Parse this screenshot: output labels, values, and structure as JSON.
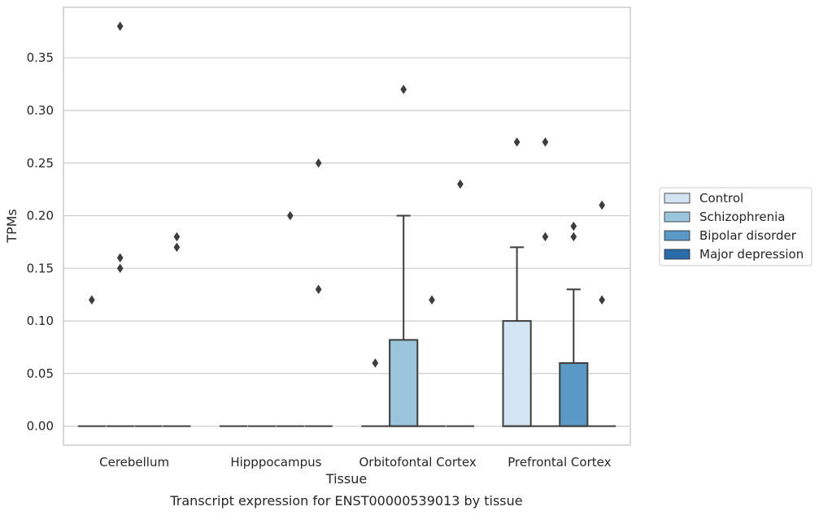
{
  "caption": "Transcript expression for ENST00000539013 by tissue",
  "chart_data": {
    "type": "box",
    "xlabel": "Tissue",
    "ylabel": "TPMs",
    "ylim": [
      -0.018,
      0.398
    ],
    "yticks": [
      "0.00",
      "0.05",
      "0.10",
      "0.15",
      "0.20",
      "0.25",
      "0.30",
      "0.35"
    ],
    "grid": "horizontal",
    "legend_position": "right",
    "categories": [
      "Cerebellum",
      "Hipppocampus",
      "Orbitofontal Cortex",
      "Prefrontal Cortex"
    ],
    "series": [
      {
        "name": "Control",
        "color": "#d3e4f3",
        "boxes": [
          {
            "q1": 0,
            "median": 0,
            "q3": 0,
            "whisker_low": 0,
            "whisker_high": 0,
            "outliers": [
              0.12
            ]
          },
          {
            "q1": 0,
            "median": 0,
            "q3": 0,
            "whisker_low": 0,
            "whisker_high": 0,
            "outliers": []
          },
          {
            "q1": 0,
            "median": 0,
            "q3": 0,
            "whisker_low": 0,
            "whisker_high": 0,
            "outliers": [
              0.06
            ]
          },
          {
            "q1": 0,
            "median": 0,
            "q3": 0.1,
            "whisker_low": 0,
            "whisker_high": 0.17,
            "outliers": [
              0.27
            ]
          }
        ]
      },
      {
        "name": "Schizophrenia",
        "color": "#9ac5dd",
        "boxes": [
          {
            "q1": 0,
            "median": 0,
            "q3": 0,
            "whisker_low": 0,
            "whisker_high": 0,
            "outliers": [
              0.38,
              0.16,
              0.15
            ]
          },
          {
            "q1": 0,
            "median": 0,
            "q3": 0,
            "whisker_low": 0,
            "whisker_high": 0,
            "outliers": []
          },
          {
            "q1": 0,
            "median": 0,
            "q3": 0.082,
            "whisker_low": 0,
            "whisker_high": 0.2,
            "outliers": [
              0.32
            ]
          },
          {
            "q1": 0,
            "median": 0,
            "q3": 0,
            "whisker_low": 0,
            "whisker_high": 0,
            "outliers": [
              0.27,
              0.18
            ]
          }
        ]
      },
      {
        "name": "Bipolar disorder",
        "color": "#5a98c6",
        "boxes": [
          {
            "q1": 0,
            "median": 0,
            "q3": 0,
            "whisker_low": 0,
            "whisker_high": 0,
            "outliers": []
          },
          {
            "q1": 0,
            "median": 0,
            "q3": 0,
            "whisker_low": 0,
            "whisker_high": 0,
            "outliers": [
              0.2
            ]
          },
          {
            "q1": 0,
            "median": 0,
            "q3": 0,
            "whisker_low": 0,
            "whisker_high": 0,
            "outliers": [
              0.12
            ]
          },
          {
            "q1": 0,
            "median": 0,
            "q3": 0.06,
            "whisker_low": 0,
            "whisker_high": 0.13,
            "outliers": [
              0.19,
              0.18
            ]
          }
        ]
      },
      {
        "name": "Major depression",
        "color": "#2b6ba9",
        "boxes": [
          {
            "q1": 0,
            "median": 0,
            "q3": 0,
            "whisker_low": 0,
            "whisker_high": 0,
            "outliers": [
              0.18,
              0.17
            ]
          },
          {
            "q1": 0,
            "median": 0,
            "q3": 0,
            "whisker_low": 0,
            "whisker_high": 0,
            "outliers": [
              0.25,
              0.13
            ]
          },
          {
            "q1": 0,
            "median": 0,
            "q3": 0,
            "whisker_low": 0,
            "whisker_high": 0,
            "outliers": [
              0.23
            ]
          },
          {
            "q1": 0,
            "median": 0,
            "q3": 0,
            "whisker_low": 0,
            "whisker_high": 0,
            "outliers": [
              0.21,
              0.12
            ]
          }
        ]
      }
    ]
  }
}
